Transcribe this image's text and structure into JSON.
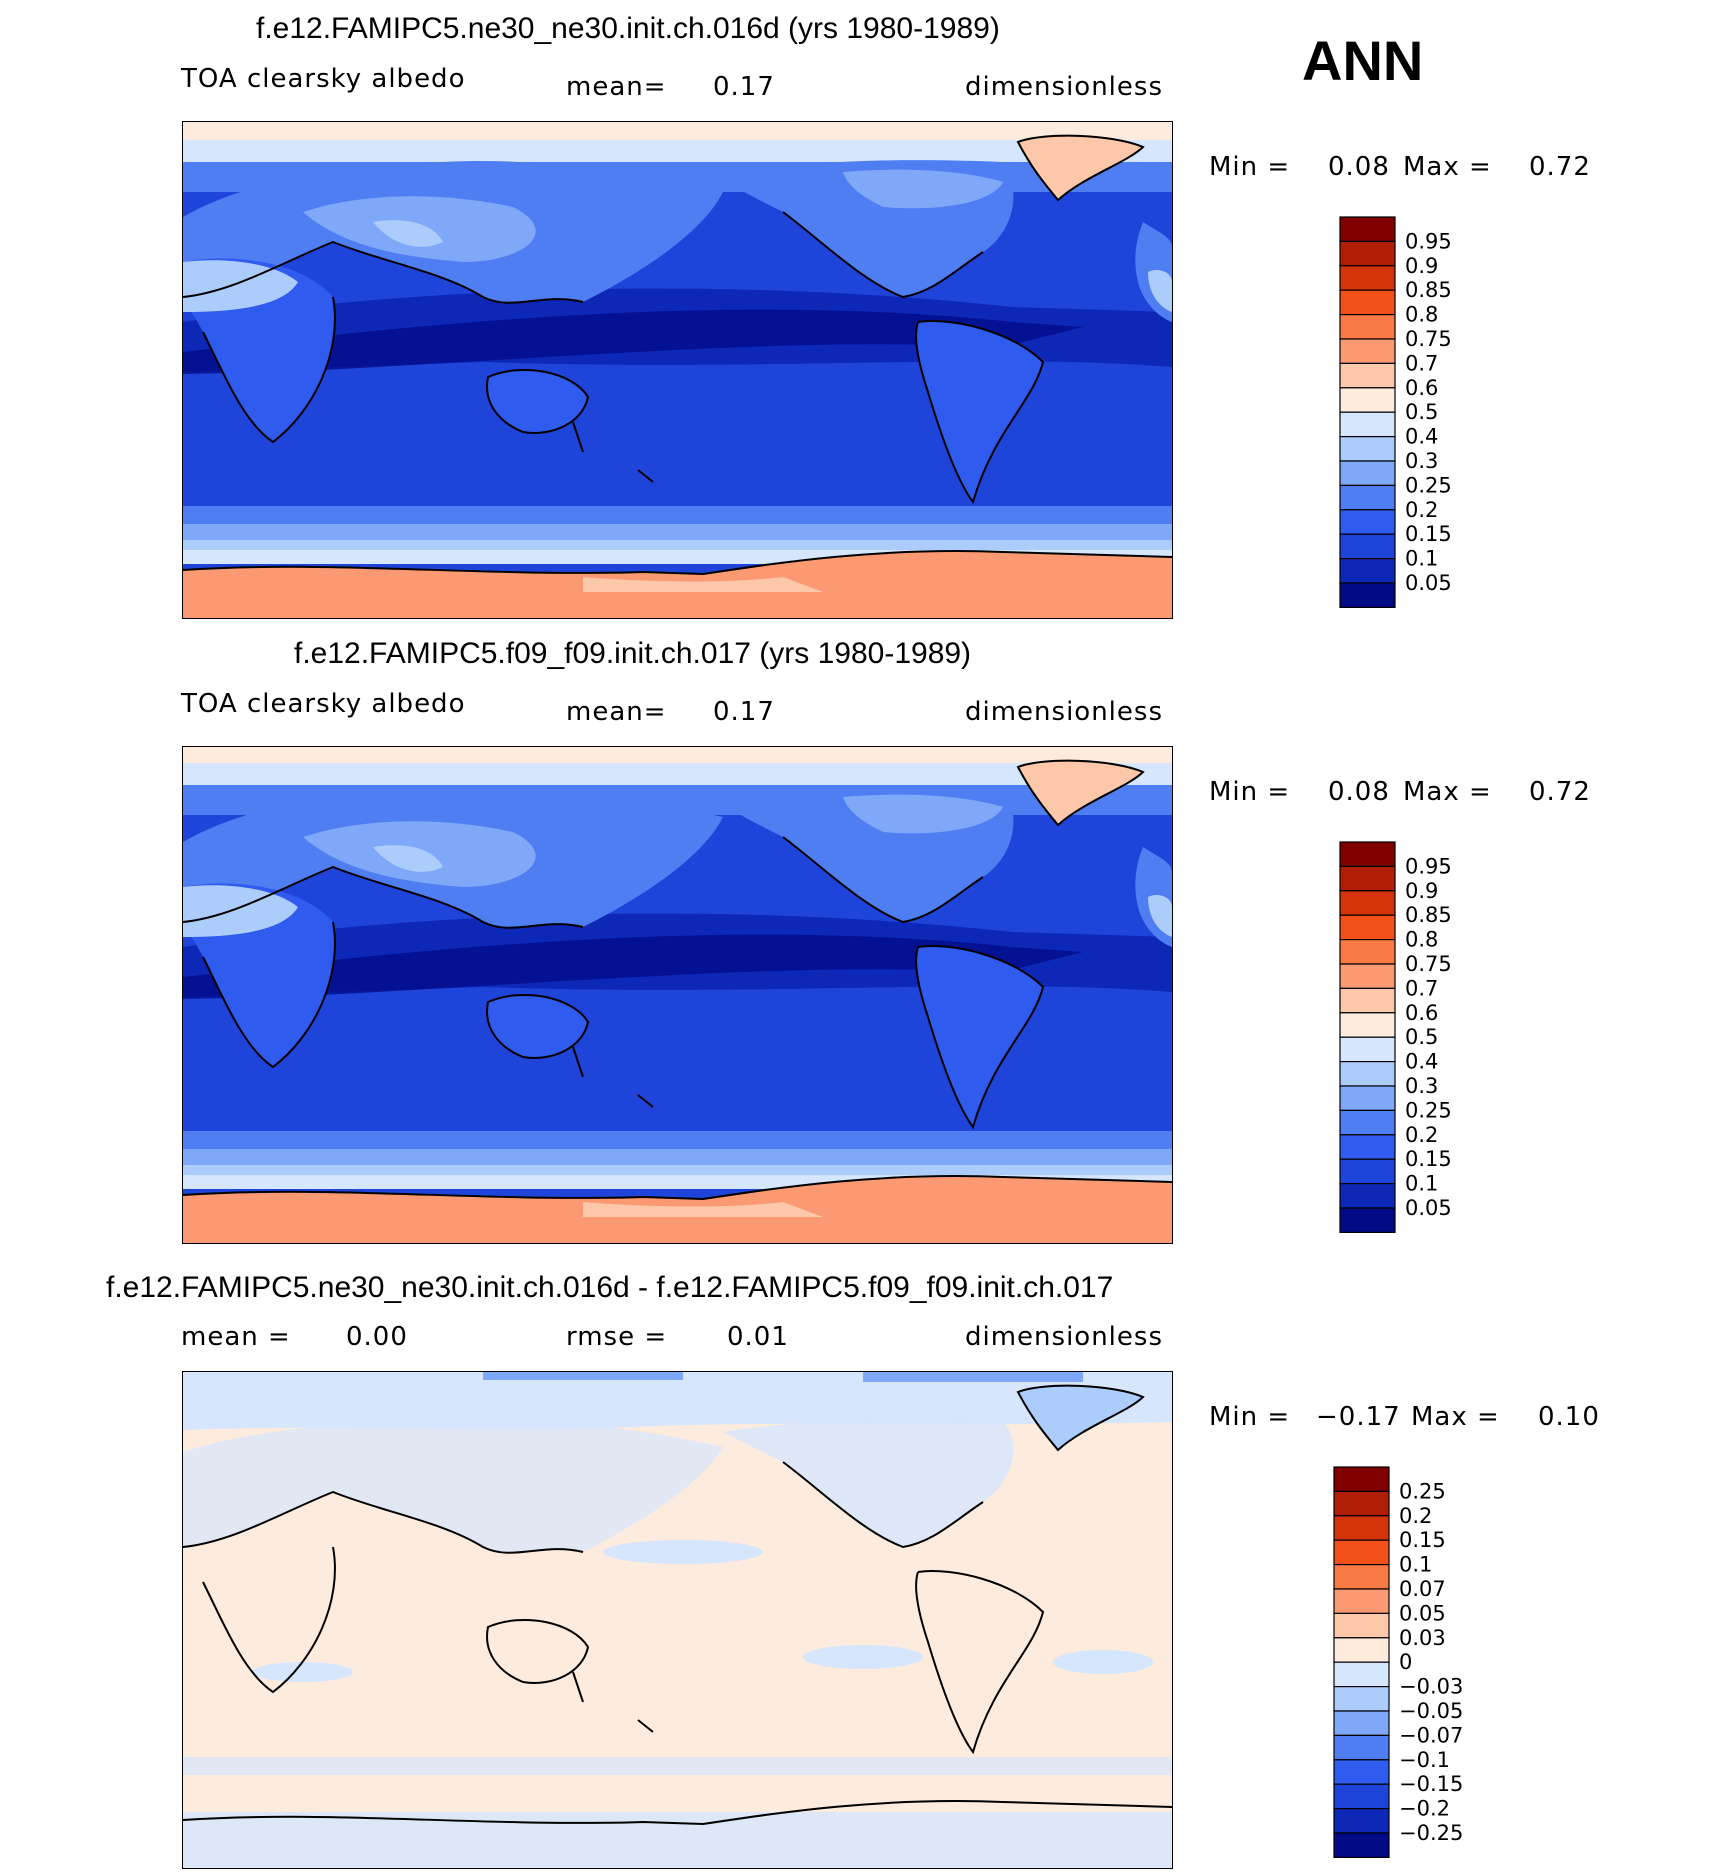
{
  "season": "ANN",
  "panels": [
    {
      "title": "f.e12.FAMIPC5.ne30_ne30.init.ch.016d (yrs 1980-1989)",
      "left_text": "TOA clearsky albedo",
      "center_label": "mean=",
      "center_value": "0.17",
      "units": "dimensionless",
      "min_label": "Min =",
      "min_value": "0.08",
      "max_label": "Max =",
      "max_value": "0.72",
      "colorbar_labels": [
        "0.95",
        "0.9",
        "0.85",
        "0.8",
        "0.75",
        "0.7",
        "0.6",
        "0.5",
        "0.4",
        "0.3",
        "0.25",
        "0.2",
        "0.15",
        "0.1",
        "0.05"
      ],
      "colorbar_colors": [
        "#800000",
        "#b01e07",
        "#d53409",
        "#f4511a",
        "#fa7a45",
        "#fb9a72",
        "#fdc7aa",
        "#fdebde",
        "#d5e6fd",
        "#acccfc",
        "#7fa8f8",
        "#4f7ef3",
        "#2f5cef",
        "#1e44da",
        "#0d28b7",
        "#020a86"
      ]
    },
    {
      "title": "f.e12.FAMIPC5.f09_f09.init.ch.017 (yrs 1980-1989)",
      "left_text": "TOA clearsky albedo",
      "center_label": "mean=",
      "center_value": "0.17",
      "units": "dimensionless",
      "min_label": "Min =",
      "min_value": "0.08",
      "max_label": "Max =",
      "max_value": "0.72",
      "colorbar_labels": [
        "0.95",
        "0.9",
        "0.85",
        "0.8",
        "0.75",
        "0.7",
        "0.6",
        "0.5",
        "0.4",
        "0.3",
        "0.25",
        "0.2",
        "0.15",
        "0.1",
        "0.05"
      ],
      "colorbar_colors": [
        "#800000",
        "#b01e07",
        "#d53409",
        "#f4511a",
        "#fa7a45",
        "#fb9a72",
        "#fdc7aa",
        "#fdebde",
        "#d5e6fd",
        "#acccfc",
        "#7fa8f8",
        "#4f7ef3",
        "#2f5cef",
        "#1e44da",
        "#0d28b7",
        "#020a86"
      ]
    },
    {
      "title": "f.e12.FAMIPC5.ne30_ne30.init.ch.016d - f.e12.FAMIPC5.f09_f09.init.ch.017",
      "left_text": "mean =",
      "left_value": "0.00",
      "center_label": "rmse =",
      "center_value": "0.01",
      "units": "dimensionless",
      "min_label": "Min =",
      "min_value": "−0.17",
      "max_label": "Max =",
      "max_value": "0.10",
      "colorbar_labels": [
        "0.25",
        "0.2",
        "0.15",
        "0.1",
        "0.07",
        "0.05",
        "0.03",
        "0",
        "−0.03",
        "−0.05",
        "−0.07",
        "−0.1",
        "−0.15",
        "−0.2",
        "−0.25"
      ],
      "colorbar_colors": [
        "#800000",
        "#b01e07",
        "#d53409",
        "#f4511a",
        "#fa7a45",
        "#fb9a72",
        "#fdc7aa",
        "#fdebde",
        "#d5e6fd",
        "#acccfc",
        "#7fa8f8",
        "#4f7ef3",
        "#2f5cef",
        "#1e44da",
        "#0d28b7",
        "#020a86"
      ]
    }
  ]
}
